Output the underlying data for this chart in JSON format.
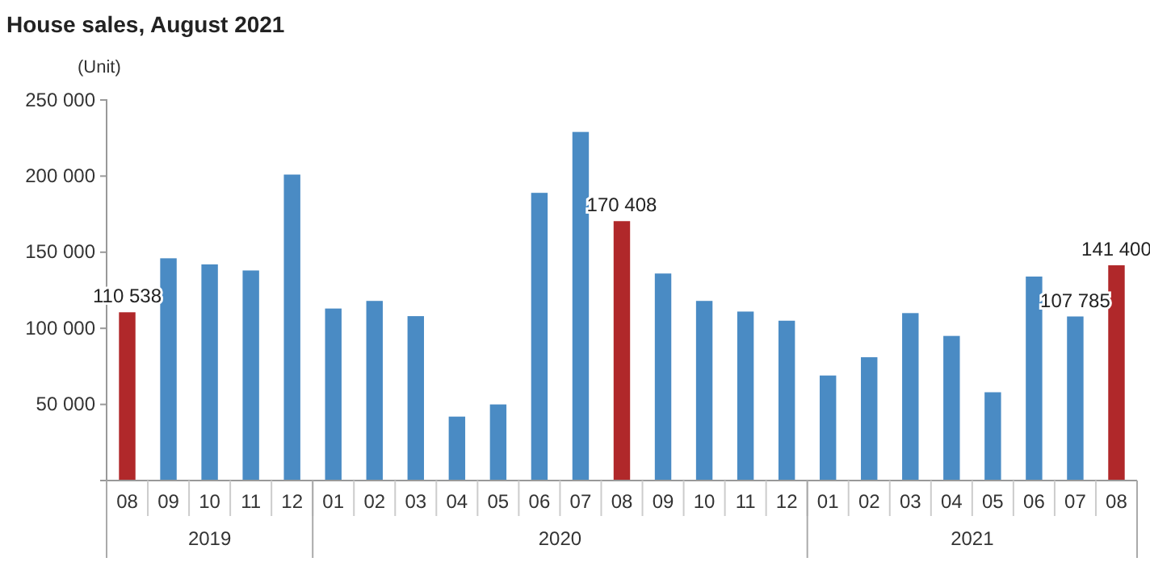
{
  "chart_data": {
    "type": "bar",
    "title": "House sales, August 2021",
    "ylabel": "(Unit)",
    "categories": [
      "08",
      "09",
      "10",
      "11",
      "12",
      "01",
      "02",
      "03",
      "04",
      "05",
      "06",
      "07",
      "08",
      "09",
      "10",
      "11",
      "12",
      "01",
      "02",
      "03",
      "04",
      "05",
      "06",
      "07",
      "08"
    ],
    "values": [
      110538,
      146000,
      142000,
      138000,
      201000,
      113000,
      118000,
      108000,
      42000,
      50000,
      189000,
      229000,
      170408,
      136000,
      118000,
      111000,
      105000,
      69000,
      81000,
      110000,
      95000,
      58000,
      134000,
      107785,
      141400
    ],
    "colors": [
      "#b0282a",
      "#4a8bc4",
      "#4a8bc4",
      "#4a8bc4",
      "#4a8bc4",
      "#4a8bc4",
      "#4a8bc4",
      "#4a8bc4",
      "#4a8bc4",
      "#4a8bc4",
      "#4a8bc4",
      "#4a8bc4",
      "#b0282a",
      "#4a8bc4",
      "#4a8bc4",
      "#4a8bc4",
      "#4a8bc4",
      "#4a8bc4",
      "#4a8bc4",
      "#4a8bc4",
      "#4a8bc4",
      "#4a8bc4",
      "#4a8bc4",
      "#4a8bc4",
      "#b0282a"
    ],
    "value_labels": [
      "110 538",
      null,
      null,
      null,
      null,
      null,
      null,
      null,
      null,
      null,
      null,
      null,
      "170 408",
      null,
      null,
      null,
      null,
      null,
      null,
      null,
      null,
      null,
      null,
      "107 785",
      "141 400"
    ],
    "ylim": [
      0,
      250000
    ],
    "yticks": [
      {
        "value": 50000,
        "label": "50 000"
      },
      {
        "value": 100000,
        "label": "100 000"
      },
      {
        "value": 150000,
        "label": "150 000"
      },
      {
        "value": 200000,
        "label": "200 000"
      },
      {
        "value": 250000,
        "label": "250 000"
      }
    ],
    "annotations": [
      "2019",
      "2020",
      "2021"
    ],
    "grid": false
  }
}
